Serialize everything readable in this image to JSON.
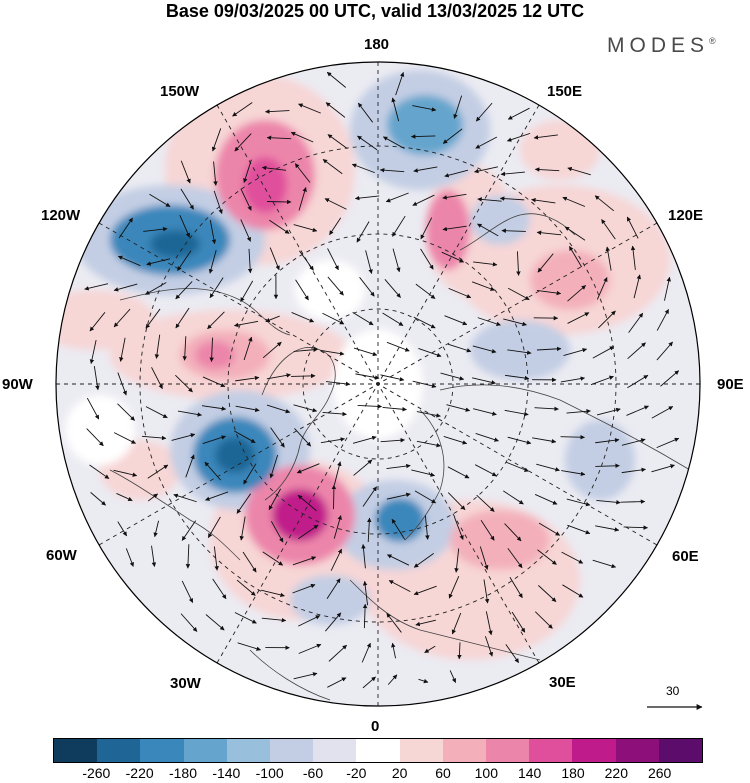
{
  "header": {
    "title": "Base 09/03/2025 00 UTC, valid 13/03/2025 12 UTC",
    "brand": "MODES",
    "brand_mark": "®"
  },
  "map": {
    "projection": "north polar stereographic",
    "longitude_labels": {
      "top": "180",
      "top_right": "150E",
      "upper_right": "120E",
      "right": "90E",
      "lower_right": "60E",
      "bottom_right": "30E",
      "bottom": "0",
      "bottom_left": "30W",
      "lower_left": "60W",
      "left": "90W",
      "upper_left": "120W",
      "top_left": "150W"
    },
    "fields": [
      "shaded anomaly field",
      "wind vectors",
      "coastlines"
    ],
    "graticule": "dashed",
    "reference_vector": {
      "value": "30"
    }
  },
  "colorbar": {
    "colors": [
      "#0f3b5c",
      "#1f6696",
      "#3a87bb",
      "#65a5cd",
      "#98bfdc",
      "#c3cee4",
      "#e2e2ef",
      "#ffffff",
      "#f7d6d6",
      "#f3b0bb",
      "#ec85aa",
      "#e04f9c",
      "#c01b8a",
      "#8c0f7a",
      "#5c0d6c"
    ],
    "tick_labels": [
      "-260",
      "-220",
      "-180",
      "-140",
      "-100",
      "-60",
      "-20",
      "20",
      "60",
      "100",
      "140",
      "180",
      "220",
      "260"
    ]
  }
}
